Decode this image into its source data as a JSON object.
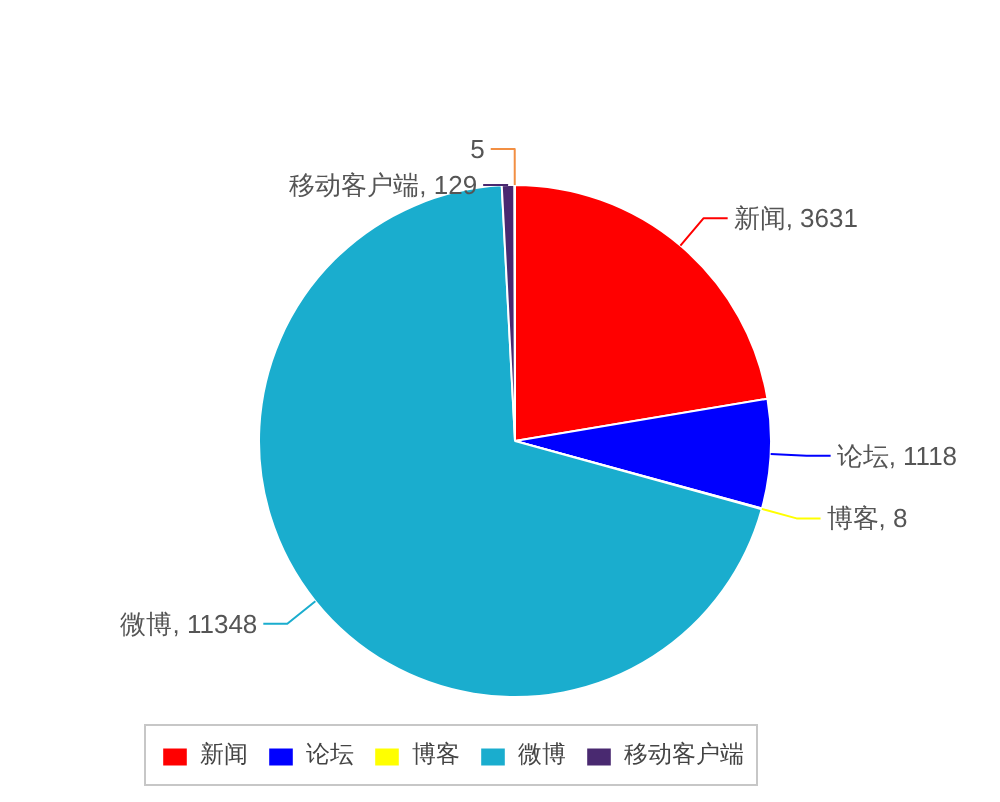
{
  "chart_data": {
    "type": "pie",
    "categories": [
      "新闻",
      "论坛",
      "博客",
      "微博",
      "移动客户端",
      null
    ],
    "values": [
      3631,
      1118,
      8,
      11348,
      129,
      5
    ],
    "colors": [
      "#ff0000",
      "#0000ff",
      "#ffff00",
      "#1aadce",
      "#492970",
      "#f28f43"
    ],
    "value_labels": [
      "新闻, 3631",
      "论坛, 1118",
      "博客, 8",
      "微博, 11348",
      "移动客户端, 129",
      "5"
    ],
    "legend": "bottom"
  }
}
